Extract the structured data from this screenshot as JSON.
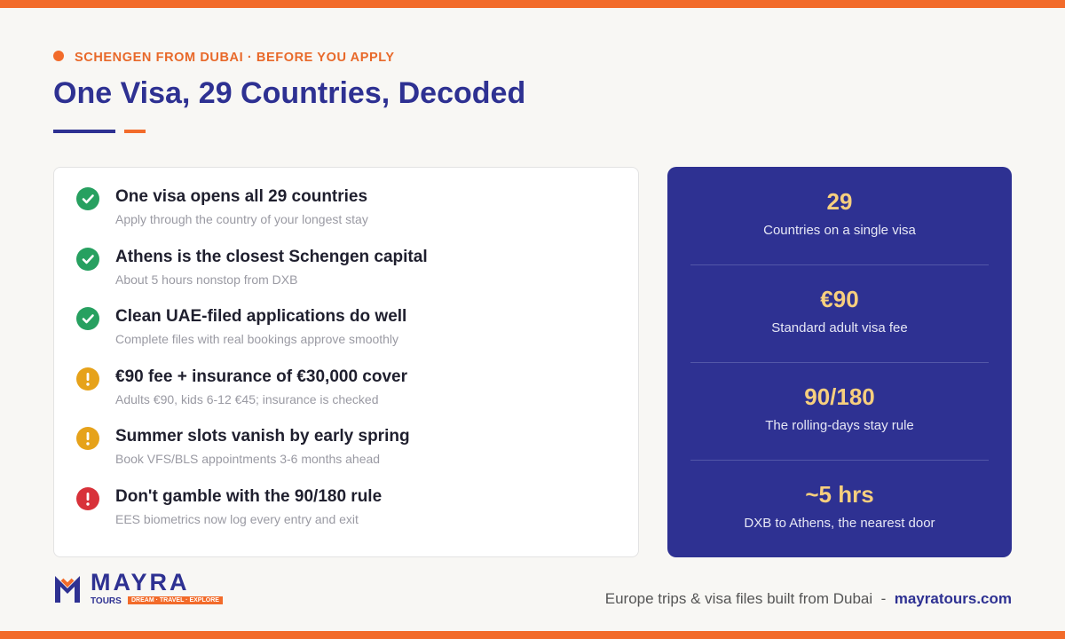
{
  "header": {
    "eyebrow": "SCHENGEN FROM DUBAI · BEFORE YOU APPLY",
    "title": "One Visa, 29 Countries, Decoded"
  },
  "checklist": [
    {
      "title": "One visa opens all 29 countries",
      "subtitle": "Apply through the country of your longest stay"
    },
    {
      "title": "Athens is the closest Schengen capital",
      "subtitle": "About 5 hours nonstop from DXB"
    },
    {
      "title": "Clean UAE-filed applications do well",
      "subtitle": "Complete files with real bookings approve smoothly"
    },
    {
      "title": "€90 fee + insurance of €30,000 cover",
      "subtitle": "Adults €90, kids 6-12 €45; insurance is checked"
    },
    {
      "title": "Summer slots vanish by early spring",
      "subtitle": "Book VFS/BLS appointments 3-6 months ahead"
    },
    {
      "title": "Don't gamble with the 90/180 rule",
      "subtitle": "EES biometrics now log every entry and exit"
    }
  ],
  "stats": [
    {
      "value": "29",
      "label": "Countries on a single visa"
    },
    {
      "value": "€90",
      "label": "Standard adult visa fee"
    },
    {
      "value": "90/180",
      "label": "The rolling-days stay rule"
    },
    {
      "value": "~5 hrs",
      "label": "DXB to Athens, the nearest door"
    }
  ],
  "logo": {
    "name": "MAYRA",
    "sub": "TOURS",
    "tagline": "DREAM · TRAVEL · EXPLORE"
  },
  "footer": {
    "text": "Europe trips & visa files built from Dubai",
    "separator": "-",
    "link": "mayratours.com"
  }
}
